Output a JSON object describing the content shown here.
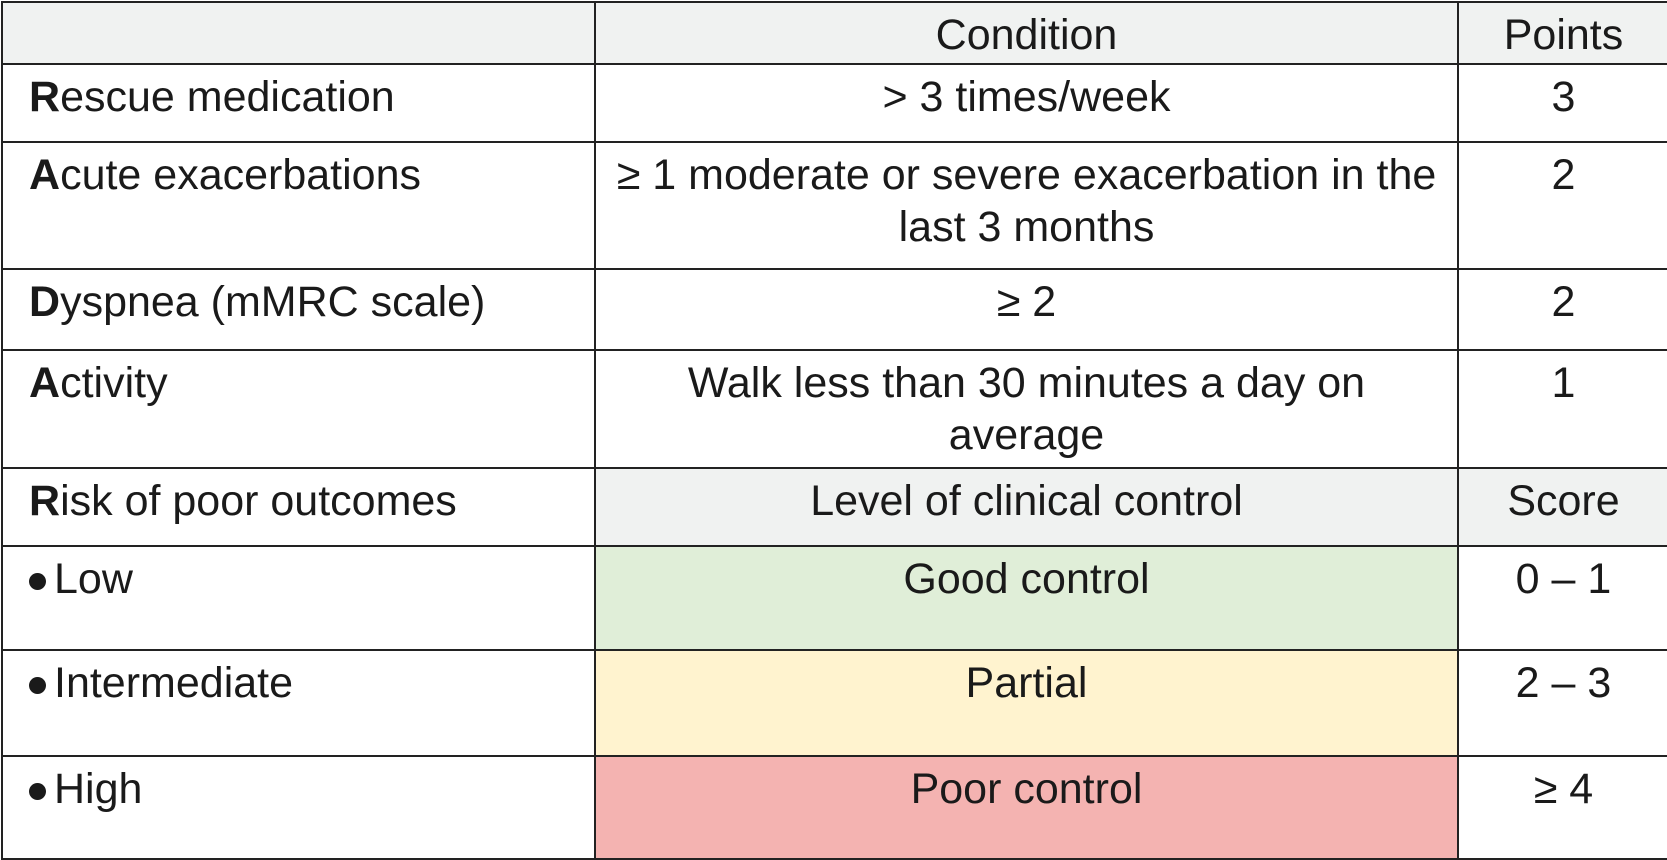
{
  "table": {
    "columns": [
      "Condition",
      "Points"
    ],
    "rows": [
      [
        "Rescue medication",
        "> 3 times/week",
        3
      ],
      [
        "Acute exacerbations",
        "≥ 1 moderate or severe exacerbation in the last 3 months",
        2
      ],
      [
        "Dyspnea (mMRC scale)",
        "≥ 2",
        2
      ],
      [
        "Activity",
        "Walk less than 30 minutes a day on average",
        1
      ]
    ],
    "outcome_header": [
      "Risk of poor outcomes",
      "Level of clinical control",
      "Score"
    ],
    "outcomes": [
      [
        "Low",
        "Good control",
        "0 – 1"
      ],
      [
        "Intermediate",
        "Partial",
        "2 – 3"
      ],
      [
        "High",
        "Poor control",
        "≥ 4"
      ]
    ]
  }
}
